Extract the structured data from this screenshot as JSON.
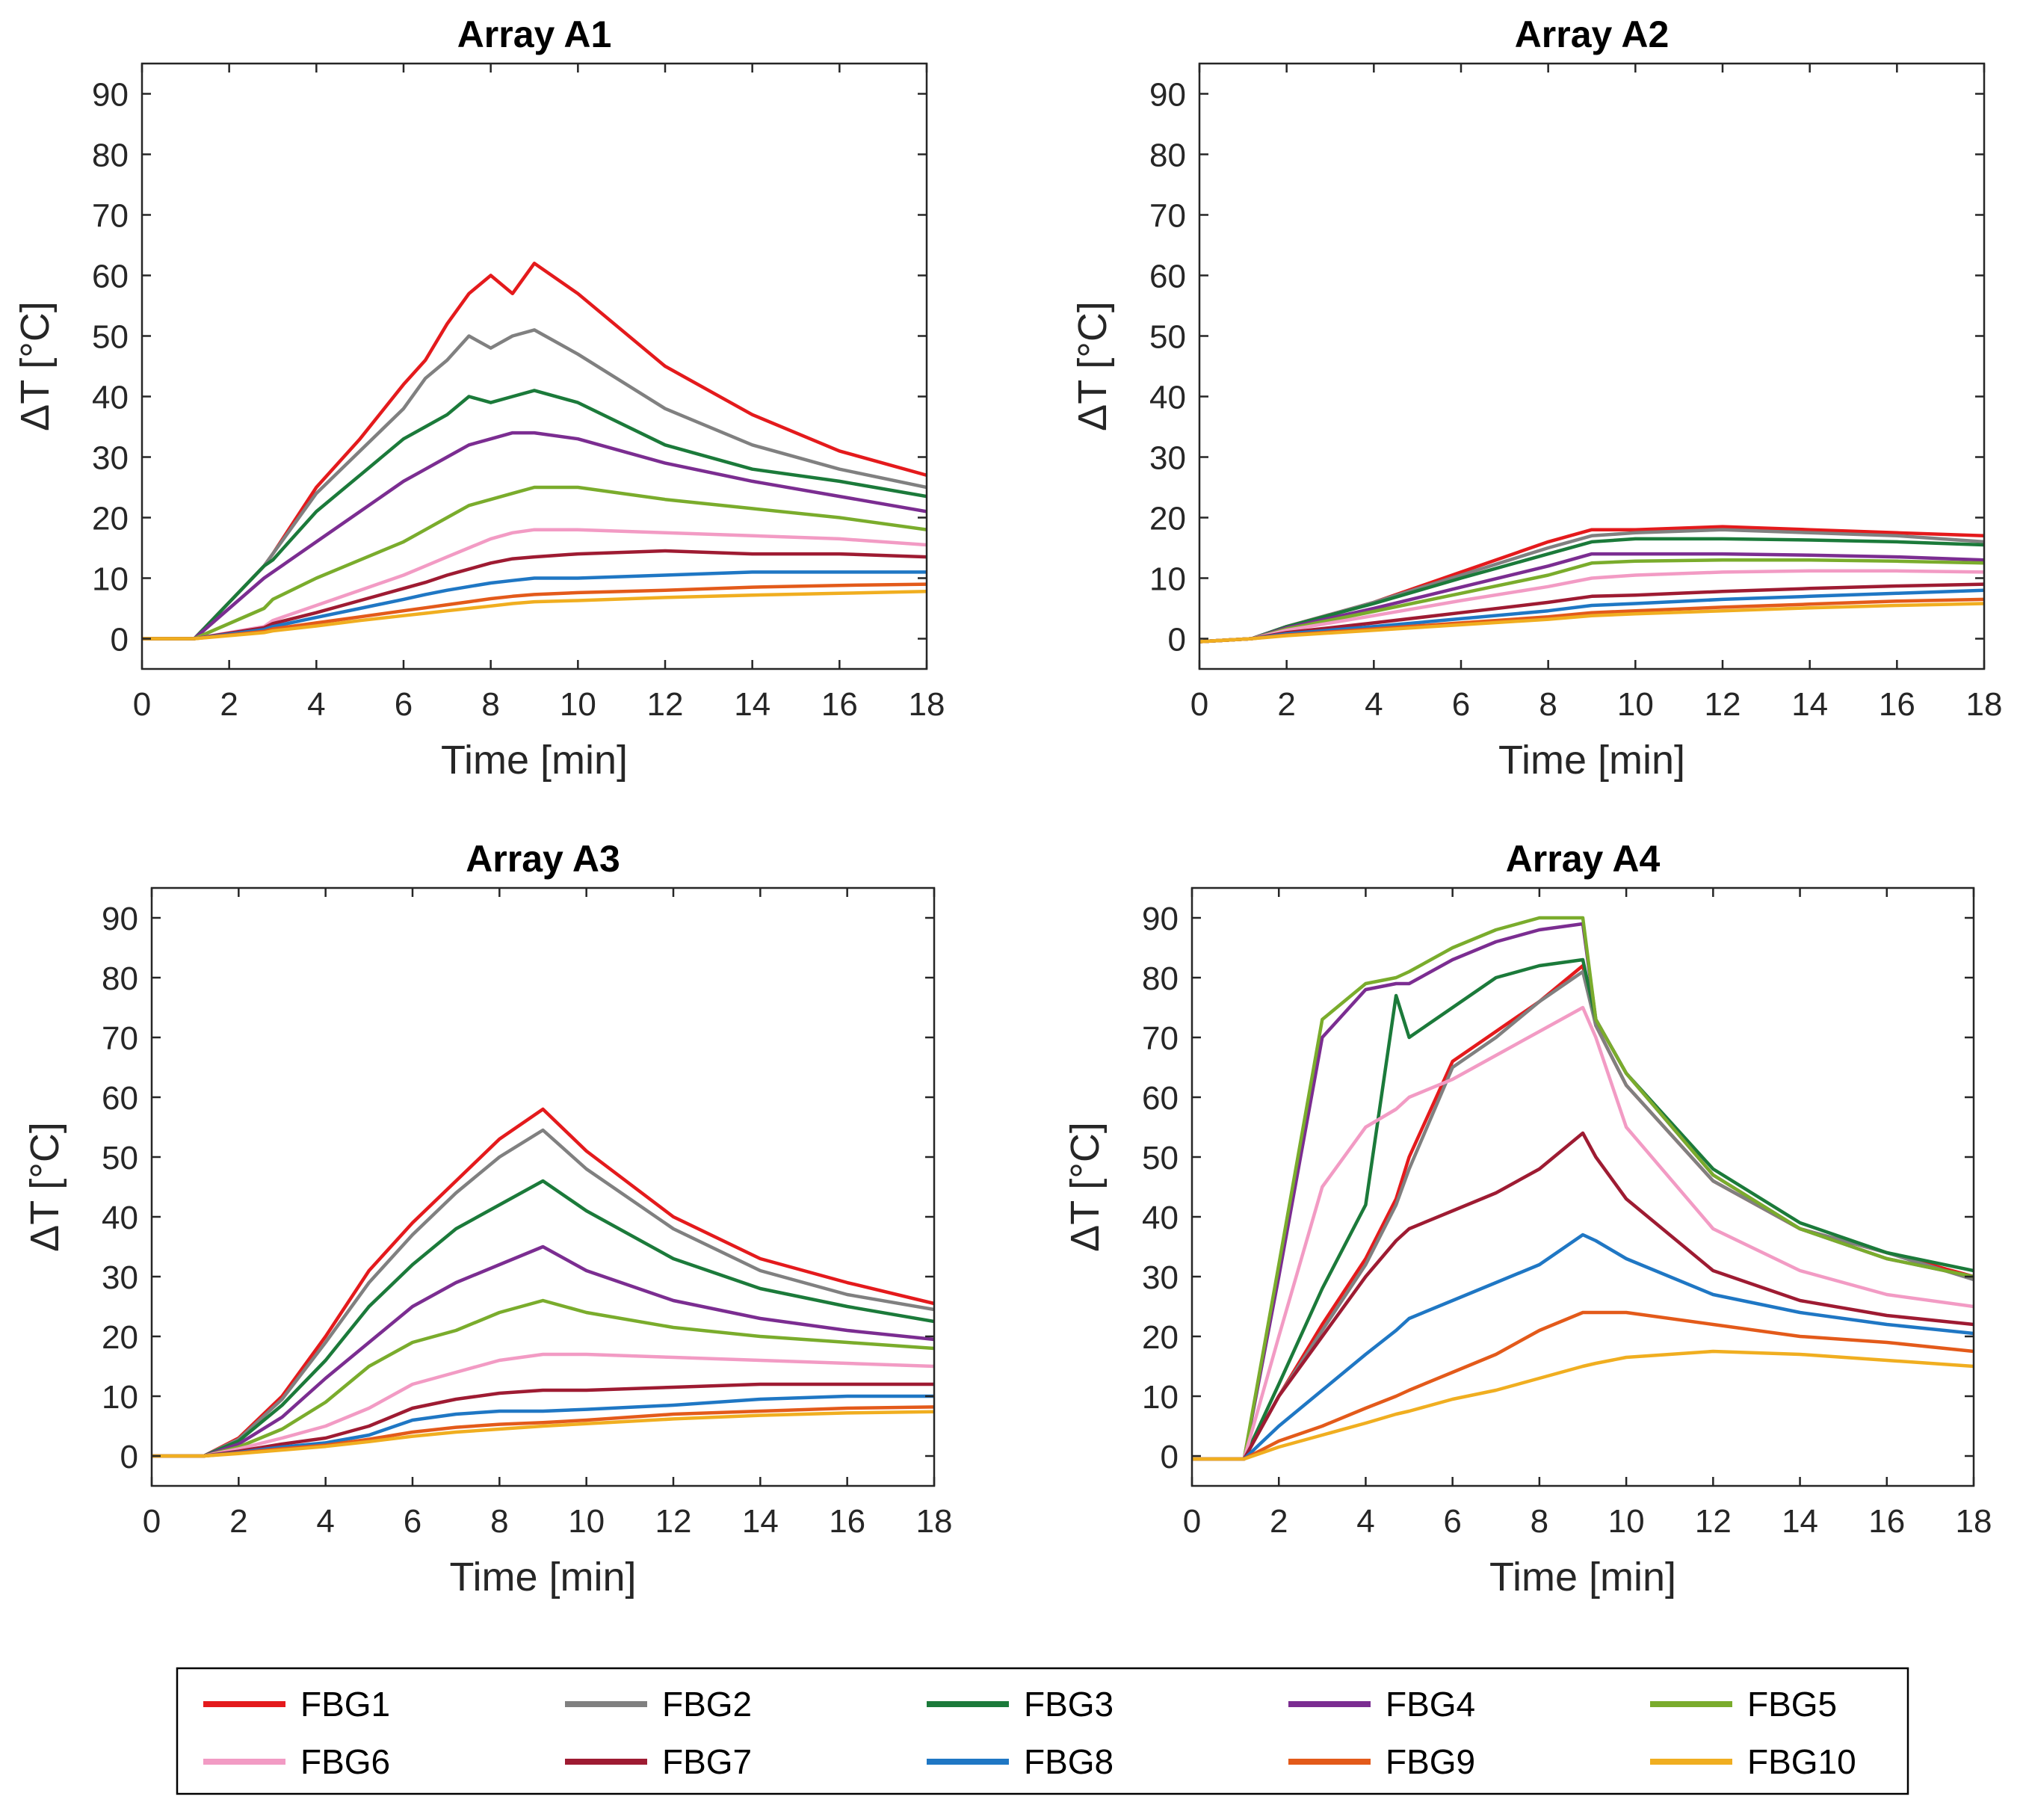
{
  "chart_data": {
    "type": "line",
    "x_label": "Time [min]",
    "y_label": "ΔT [°C]",
    "xlim": [
      0,
      18
    ],
    "ylim": [
      -5,
      95
    ],
    "x_ticks": [
      "0",
      "2",
      "4",
      "6",
      "8",
      "10",
      "12",
      "14",
      "16",
      "18"
    ],
    "y_ticks": [
      "0",
      "10",
      "20",
      "30",
      "40",
      "50",
      "60",
      "70",
      "80",
      "90"
    ],
    "series_names": [
      "FBG1",
      "FBG2",
      "FBG3",
      "FBG4",
      "FBG5",
      "FBG6",
      "FBG7",
      "FBG8",
      "FBG9",
      "FBG10"
    ],
    "colors": [
      "#e41a1c",
      "#808080",
      "#1b7a3a",
      "#7b2d91",
      "#7aac2c",
      "#f29bc4",
      "#9e1b32",
      "#1f77c4",
      "#e35a1a",
      "#f0ae20"
    ],
    "panels": [
      {
        "title": "Array A1",
        "x": [
          0,
          1.2,
          2.8,
          3,
          4,
          5,
          6,
          6.5,
          7,
          7.5,
          8,
          8.5,
          9,
          10,
          12,
          14,
          16,
          18
        ],
        "series": [
          {
            "name": "FBG1",
            "values": [
              0,
              0,
              12,
              14,
              25,
              33,
              42,
              46,
              52,
              57,
              60,
              57,
              62,
              57,
              45,
              37,
              31,
              27
            ]
          },
          {
            "name": "FBG2",
            "values": [
              0,
              0,
              12,
              14,
              24,
              31,
              38,
              43,
              46,
              50,
              48,
              50,
              51,
              47,
              38,
              32,
              28,
              25
            ]
          },
          {
            "name": "FBG3",
            "values": [
              0,
              0,
              12,
              13,
              21,
              27,
              33,
              35,
              37,
              40,
              39,
              40,
              41,
              39,
              32,
              28,
              26,
              23.5
            ]
          },
          {
            "name": "FBG4",
            "values": [
              0,
              0,
              10,
              11,
              16,
              21,
              26,
              28,
              30,
              32,
              33,
              34,
              34,
              33,
              29,
              26,
              23.5,
              21
            ]
          },
          {
            "name": "FBG5",
            "values": [
              0,
              0,
              5,
              6.5,
              10,
              13,
              16,
              18,
              20,
              22,
              23,
              24,
              25,
              25,
              23,
              21.5,
              20,
              18
            ]
          },
          {
            "name": "FBG6",
            "values": [
              0,
              0,
              2,
              3,
              5.5,
              8,
              10.5,
              12,
              13.5,
              15,
              16.5,
              17.5,
              18,
              18,
              17.5,
              17,
              16.5,
              15.5
            ]
          },
          {
            "name": "FBG7",
            "values": [
              0,
              0,
              1.8,
              2.5,
              4.3,
              6.3,
              8.3,
              9.3,
              10.5,
              11.5,
              12.5,
              13.2,
              13.5,
              14,
              14.5,
              14,
              14,
              13.5
            ]
          },
          {
            "name": "FBG8",
            "values": [
              0,
              0,
              1.5,
              2,
              3.5,
              5,
              6.5,
              7.3,
              8,
              8.6,
              9.2,
              9.6,
              10,
              10,
              10.5,
              11,
              11,
              11
            ]
          },
          {
            "name": "FBG9",
            "values": [
              0,
              0,
              1.2,
              1.6,
              2.6,
              3.6,
              4.6,
              5.1,
              5.6,
              6.1,
              6.6,
              7,
              7.3,
              7.6,
              8,
              8.5,
              8.8,
              9
            ]
          },
          {
            "name": "FBG10",
            "values": [
              0,
              0,
              1,
              1.3,
              2.1,
              3,
              3.8,
              4.2,
              4.6,
              5,
              5.4,
              5.8,
              6.1,
              6.3,
              6.8,
              7.2,
              7.5,
              7.8
            ]
          }
        ]
      },
      {
        "title": "Array A2",
        "x": [
          0,
          1.2,
          2,
          4,
          6,
          8,
          9,
          10,
          12,
          14,
          16,
          18
        ],
        "series": [
          {
            "name": "FBG1",
            "values": [
              -0.5,
              0,
              2,
              6,
              11,
              16,
              18,
              18,
              18.5,
              18,
              17.5,
              17
            ]
          },
          {
            "name": "FBG2",
            "values": [
              -0.5,
              0,
              2,
              6,
              10.5,
              15,
              17,
              17.5,
              18,
              17.5,
              17,
              16
            ]
          },
          {
            "name": "FBG3",
            "values": [
              -0.5,
              0,
              2,
              5.8,
              10,
              14,
              16,
              16.5,
              16.5,
              16.3,
              16,
              15.5
            ]
          },
          {
            "name": "FBG4",
            "values": [
              -0.5,
              0,
              1.8,
              5,
              8.5,
              12,
              14,
              14,
              14,
              13.8,
              13.5,
              13
            ]
          },
          {
            "name": "FBG5",
            "values": [
              -0.5,
              0,
              1.6,
              4.5,
              7.5,
              10.5,
              12.5,
              12.8,
              13,
              13,
              12.8,
              12.5
            ]
          },
          {
            "name": "FBG6",
            "values": [
              -0.5,
              0,
              1.4,
              3.8,
              6.3,
              8.6,
              10,
              10.5,
              11,
              11.2,
              11.2,
              11
            ]
          },
          {
            "name": "FBG7",
            "values": [
              -0.5,
              0,
              1,
              2.6,
              4.3,
              6,
              7,
              7.2,
              7.8,
              8.3,
              8.7,
              9
            ]
          },
          {
            "name": "FBG8",
            "values": [
              -0.5,
              0,
              0.8,
              2,
              3.3,
              4.6,
              5.5,
              5.8,
              6.5,
              7,
              7.5,
              8
            ]
          },
          {
            "name": "FBG9",
            "values": [
              -0.5,
              0,
              0.6,
              1.6,
              2.6,
              3.6,
              4.3,
              4.6,
              5.2,
              5.7,
              6.2,
              6.5
            ]
          },
          {
            "name": "FBG10",
            "values": [
              -0.5,
              0,
              0.5,
              1.4,
              2.3,
              3.2,
              3.8,
              4.1,
              4.6,
              5.1,
              5.5,
              5.8
            ]
          }
        ]
      },
      {
        "title": "Array A3",
        "x": [
          0,
          1.2,
          2,
          3,
          4,
          5,
          6,
          7,
          8,
          9,
          10,
          12,
          14,
          16,
          18
        ],
        "series": [
          {
            "name": "FBG1",
            "values": [
              0,
              0,
              3,
              10,
              20,
              31,
              39,
              46,
              53,
              58,
              51,
              40,
              33,
              29,
              25.5
            ]
          },
          {
            "name": "FBG2",
            "values": [
              0,
              0,
              2.8,
              9.5,
              19,
              29,
              37,
              44,
              50,
              54.5,
              48,
              38,
              31,
              27,
              24.5
            ]
          },
          {
            "name": "FBG3",
            "values": [
              0,
              0,
              2.5,
              8.5,
              16,
              25,
              32,
              38,
              42,
              46,
              41,
              33,
              28,
              25,
              22.5
            ]
          },
          {
            "name": "FBG4",
            "values": [
              0,
              0,
              2,
              6.5,
              13,
              19,
              25,
              29,
              32,
              35,
              31,
              26,
              23,
              21,
              19.5
            ]
          },
          {
            "name": "FBG5",
            "values": [
              0,
              0,
              1.5,
              4.5,
              9,
              15,
              19,
              21,
              24,
              26,
              24,
              21.5,
              20,
              19,
              18
            ]
          },
          {
            "name": "FBG6",
            "values": [
              0,
              0,
              1.2,
              3,
              5,
              8,
              12,
              14,
              16,
              17,
              17,
              16.5,
              16,
              15.5,
              15
            ]
          },
          {
            "name": "FBG7",
            "values": [
              0,
              0,
              0.8,
              2,
              3,
              5,
              8,
              9.5,
              10.5,
              11,
              11,
              11.5,
              12,
              12,
              12
            ]
          },
          {
            "name": "FBG8",
            "values": [
              0,
              0,
              0.6,
              1.5,
              2.2,
              3.5,
              6,
              7,
              7.5,
              7.5,
              7.8,
              8.5,
              9.5,
              10,
              10
            ]
          },
          {
            "name": "FBG9",
            "values": [
              0,
              0,
              0.5,
              1.2,
              1.8,
              2.8,
              4,
              4.8,
              5.3,
              5.6,
              6,
              7,
              7.5,
              8,
              8.2
            ]
          },
          {
            "name": "FBG10",
            "values": [
              0,
              0,
              0.4,
              1,
              1.6,
              2.4,
              3.3,
              4,
              4.5,
              5,
              5.4,
              6.2,
              6.8,
              7.2,
              7.4
            ]
          }
        ]
      },
      {
        "title": "Array A4",
        "x": [
          0,
          1.2,
          2,
          3,
          4,
          4.7,
          5,
          6,
          7,
          8,
          9,
          9.3,
          10,
          12,
          14,
          16,
          18
        ],
        "series": [
          {
            "name": "FBG1",
            "values": [
              -0.5,
              -0.5,
              10,
              22,
              33,
              43,
              50,
              66,
              71,
              76,
              82,
              72,
              62,
              46,
              38,
              34,
              30
            ]
          },
          {
            "name": "FBG2",
            "values": [
              -0.5,
              -0.5,
              10,
              21,
              32,
              42,
              48,
              65,
              70,
              76,
              81,
              72,
              62,
              46,
              38,
              34,
              29.5
            ]
          },
          {
            "name": "FBG3",
            "values": [
              -0.5,
              -0.5,
              12,
              28,
              42,
              77,
              70,
              75,
              80,
              82,
              83,
              73,
              64,
              48,
              39,
              34,
              31
            ]
          },
          {
            "name": "FBG4",
            "values": [
              -0.5,
              -0.5,
              30,
              70,
              78,
              79,
              79,
              83,
              86,
              88,
              89,
              73,
              64,
              47,
              38,
              33,
              30
            ]
          },
          {
            "name": "FBG5",
            "values": [
              -0.5,
              -0.5,
              32,
              73,
              79,
              80,
              81,
              85,
              88,
              90,
              90,
              73,
              64,
              47,
              38,
              33,
              30
            ]
          },
          {
            "name": "FBG6",
            "values": [
              -0.5,
              -0.5,
              20,
              45,
              55,
              58,
              60,
              63,
              67,
              71,
              75,
              70,
              55,
              38,
              31,
              27,
              25
            ]
          },
          {
            "name": "FBG7",
            "values": [
              -0.5,
              -0.5,
              10,
              20,
              30,
              36,
              38,
              41,
              44,
              48,
              54,
              50,
              43,
              31,
              26,
              23.5,
              22
            ]
          },
          {
            "name": "FBG8",
            "values": [
              -0.5,
              -0.5,
              5,
              11,
              17,
              21,
              23,
              26,
              29,
              32,
              37,
              36,
              33,
              27,
              24,
              22,
              20.5
            ]
          },
          {
            "name": "FBG9",
            "values": [
              -0.5,
              -0.5,
              2.5,
              5,
              8,
              10,
              11,
              14,
              17,
              21,
              24,
              24,
              24,
              22,
              20,
              19,
              17.5
            ]
          },
          {
            "name": "FBG10",
            "values": [
              -0.5,
              -0.5,
              1.5,
              3.5,
              5.5,
              7,
              7.5,
              9.5,
              11,
              13,
              15,
              15.5,
              16.5,
              17.5,
              17,
              16,
              15
            ]
          }
        ]
      }
    ]
  }
}
